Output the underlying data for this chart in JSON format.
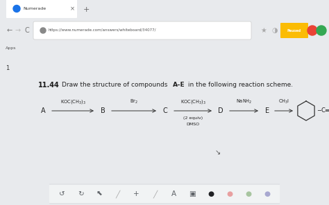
{
  "bg_color": "#e8eaed",
  "tab_bg": "#dee1e6",
  "active_tab_bg": "#ffffff",
  "tab_text": "Numerade",
  "tab_favicon_color": "#1a73e8",
  "url": "https://www.numerade.com/answers/whiteboard/34077/",
  "page_bg": "#ffffff",
  "page_number": "1",
  "problem_number": "11.44",
  "problem_text_plain": "Draw the structure of compounds ",
  "problem_text_bold": "A–E",
  "problem_text_end": " in the following reaction scheme.",
  "letters": [
    "A",
    "B",
    "C",
    "D",
    "E"
  ],
  "star_color": "#aaaaaa",
  "paused_btn_color": "#fbbc04",
  "red_circle_color": "#ea4335",
  "green_circle_color": "#34a853",
  "toolbar_bg": "#f1f3f4",
  "toolbar_border": "#dadce0",
  "toolbar_icon_color": "#5f6368",
  "black_dot": "#202124",
  "pink_dot": "#e8a0a0",
  "green_dot": "#a8c5a0",
  "purple_dot": "#a8a8d0"
}
